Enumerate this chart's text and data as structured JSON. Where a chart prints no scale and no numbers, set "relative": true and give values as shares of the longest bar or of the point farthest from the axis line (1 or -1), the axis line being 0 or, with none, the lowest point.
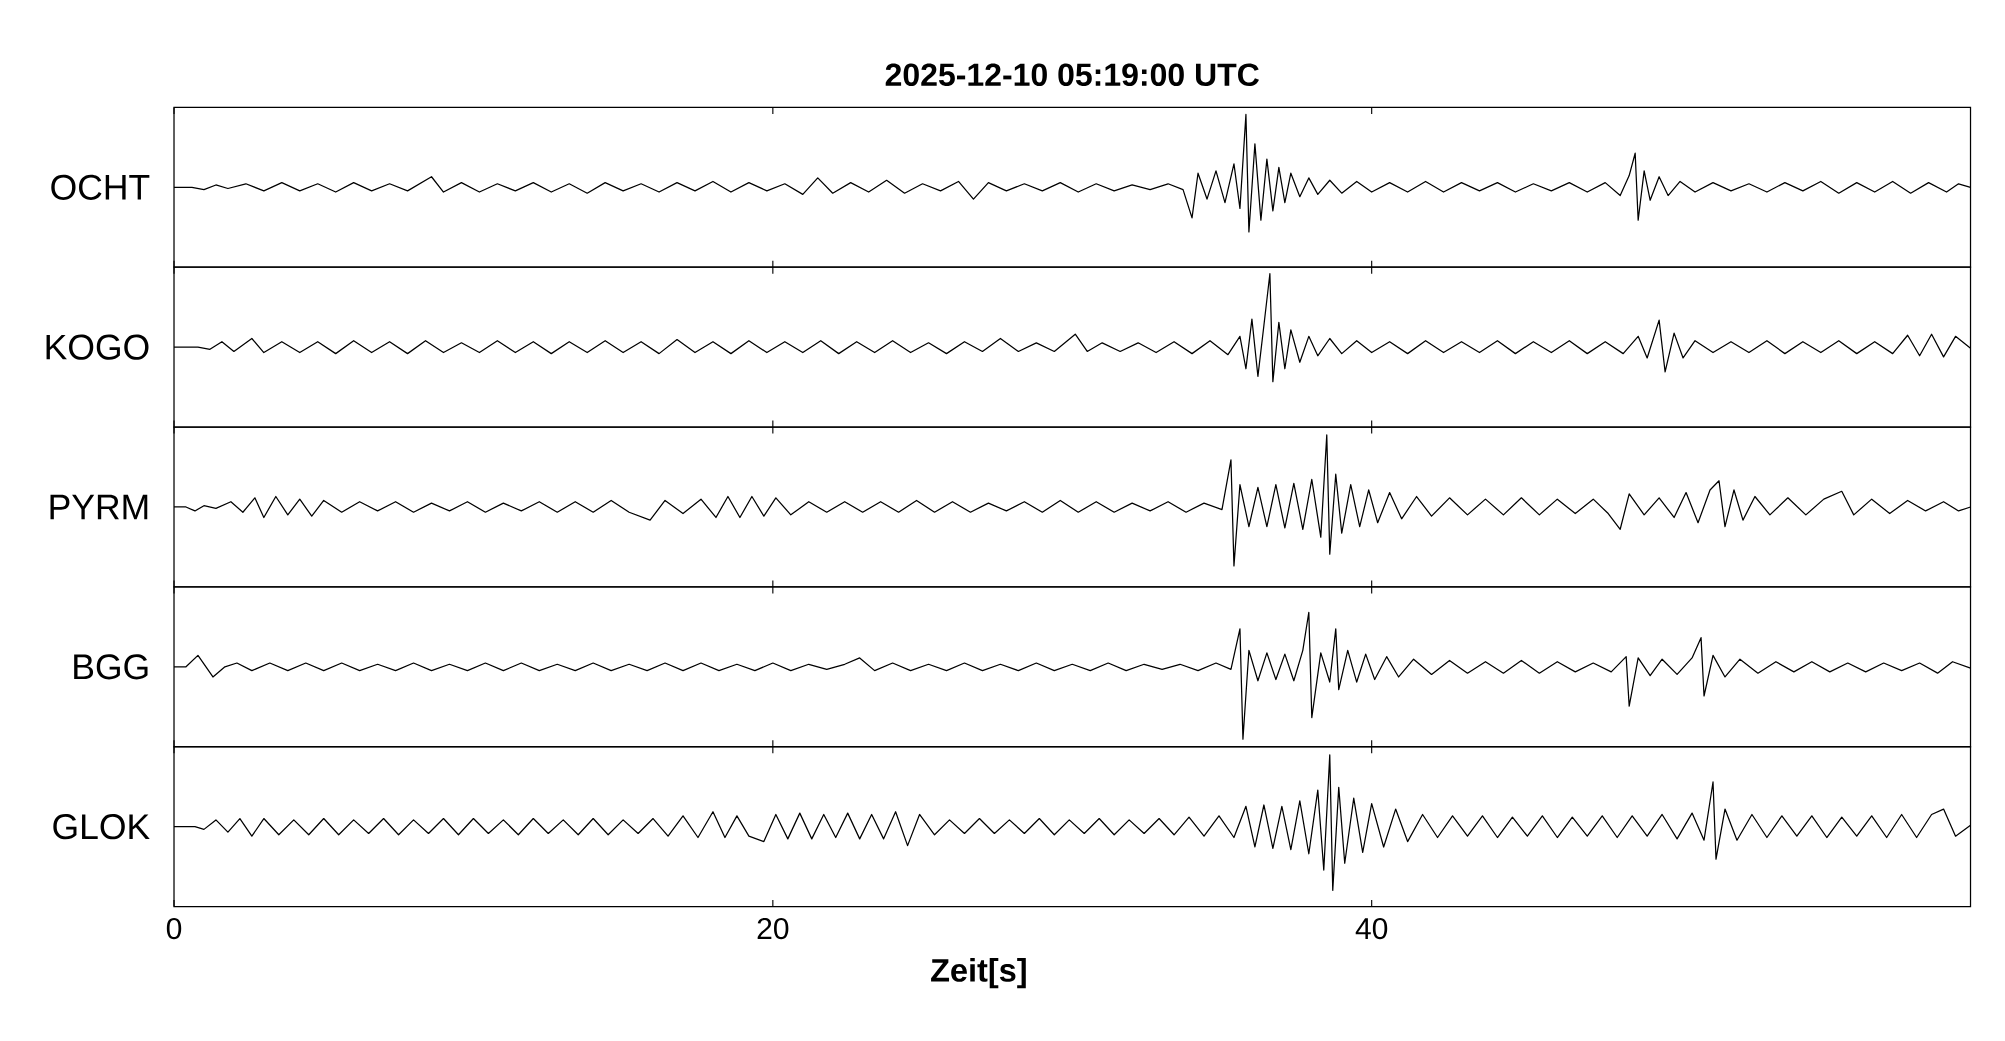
{
  "chart_data": [
    {
      "type": "line",
      "title": "2025-12-10  05:19:00 UTC",
      "ylabel": "OCHT",
      "color": "#000000",
      "relative": true,
      "xlim": [
        0,
        60
      ],
      "xticks": [
        0,
        20,
        40
      ],
      "tick_labels": false,
      "x": [
        0,
        0.6,
        1.0,
        1.4,
        1.8,
        2.4,
        3.0,
        3.6,
        4.2,
        4.8,
        5.4,
        6.0,
        6.6,
        7.2,
        7.8,
        8.6,
        9.0,
        9.6,
        10.2,
        10.8,
        11.4,
        12.0,
        12.6,
        13.2,
        13.8,
        14.4,
        15.0,
        15.6,
        16.2,
        16.8,
        17.4,
        18.0,
        18.6,
        19.2,
        19.8,
        20.4,
        21.0,
        21.5,
        22.0,
        22.6,
        23.2,
        23.8,
        24.4,
        25.0,
        25.6,
        26.2,
        26.7,
        27.2,
        27.8,
        28.4,
        29.0,
        29.6,
        30.2,
        30.8,
        31.4,
        32.0,
        32.6,
        33.2,
        33.7,
        34.0,
        34.2,
        34.5,
        34.8,
        35.1,
        35.4,
        35.6,
        35.8,
        35.9,
        36.1,
        36.3,
        36.5,
        36.7,
        36.9,
        37.1,
        37.3,
        37.6,
        37.9,
        38.2,
        38.6,
        39.0,
        39.5,
        40.0,
        40.6,
        41.2,
        41.8,
        42.4,
        43.0,
        43.6,
        44.2,
        44.8,
        45.4,
        46.0,
        46.6,
        47.2,
        47.8,
        48.3,
        48.6,
        48.8,
        48.9,
        49.1,
        49.3,
        49.6,
        49.9,
        50.3,
        50.8,
        51.4,
        52.0,
        52.6,
        53.2,
        53.8,
        54.4,
        55.0,
        55.6,
        56.2,
        56.8,
        57.4,
        58.0,
        58.6,
        59.2,
        59.6,
        60.0
      ],
      "values": [
        0.38,
        0.38,
        0.36,
        0.4,
        0.37,
        0.41,
        0.35,
        0.42,
        0.35,
        0.41,
        0.34,
        0.42,
        0.35,
        0.41,
        0.35,
        0.47,
        0.34,
        0.42,
        0.34,
        0.41,
        0.35,
        0.42,
        0.34,
        0.41,
        0.33,
        0.42,
        0.35,
        0.41,
        0.34,
        0.42,
        0.35,
        0.43,
        0.34,
        0.42,
        0.35,
        0.41,
        0.32,
        0.46,
        0.33,
        0.42,
        0.34,
        0.44,
        0.33,
        0.41,
        0.35,
        0.43,
        0.28,
        0.42,
        0.35,
        0.41,
        0.35,
        0.42,
        0.34,
        0.41,
        0.35,
        0.4,
        0.36,
        0.41,
        0.36,
        0.12,
        0.5,
        0.28,
        0.52,
        0.25,
        0.58,
        0.2,
        1.0,
        0.0,
        0.75,
        0.1,
        0.62,
        0.18,
        0.55,
        0.25,
        0.5,
        0.3,
        0.46,
        0.32,
        0.44,
        0.33,
        0.43,
        0.34,
        0.42,
        0.34,
        0.43,
        0.34,
        0.42,
        0.35,
        0.42,
        0.34,
        0.41,
        0.35,
        0.42,
        0.34,
        0.42,
        0.31,
        0.48,
        0.67,
        0.1,
        0.52,
        0.27,
        0.47,
        0.31,
        0.43,
        0.34,
        0.42,
        0.35,
        0.41,
        0.34,
        0.42,
        0.35,
        0.43,
        0.33,
        0.42,
        0.34,
        0.43,
        0.33,
        0.42,
        0.34,
        0.41,
        0.38
      ]
    },
    {
      "type": "line",
      "ylabel": "KOGO",
      "color": "#000000",
      "relative": true,
      "xlim": [
        0,
        60
      ],
      "xticks": [
        0,
        20,
        40
      ],
      "tick_labels": false,
      "x": [
        0,
        0.8,
        1.2,
        1.6,
        2.0,
        2.6,
        3.0,
        3.6,
        4.2,
        4.8,
        5.4,
        6.0,
        6.6,
        7.2,
        7.8,
        8.4,
        9.0,
        9.6,
        10.2,
        10.8,
        11.4,
        12.0,
        12.6,
        13.2,
        13.8,
        14.4,
        15.0,
        15.6,
        16.2,
        16.8,
        17.4,
        18.0,
        18.6,
        19.2,
        19.8,
        20.4,
        21.0,
        21.6,
        22.2,
        22.8,
        23.4,
        24.0,
        24.6,
        25.2,
        25.8,
        26.4,
        27.0,
        27.6,
        28.2,
        28.8,
        29.4,
        30.1,
        30.5,
        31.0,
        31.6,
        32.2,
        32.8,
        33.4,
        34.0,
        34.6,
        35.2,
        35.6,
        35.8,
        36.0,
        36.2,
        36.4,
        36.6,
        36.7,
        36.9,
        37.1,
        37.3,
        37.6,
        37.9,
        38.2,
        38.6,
        39.0,
        39.5,
        40.0,
        40.6,
        41.2,
        41.8,
        42.4,
        43.0,
        43.6,
        44.2,
        44.8,
        45.4,
        46.0,
        46.6,
        47.2,
        47.8,
        48.4,
        48.9,
        49.2,
        49.6,
        49.8,
        50.1,
        50.4,
        50.8,
        51.4,
        52.0,
        52.6,
        53.2,
        53.8,
        54.4,
        55.0,
        55.6,
        56.2,
        56.8,
        57.4,
        57.9,
        58.3,
        58.7,
        59.1,
        59.5,
        60.0
      ],
      "values": [
        0.32,
        0.32,
        0.3,
        0.37,
        0.28,
        0.4,
        0.27,
        0.37,
        0.27,
        0.37,
        0.26,
        0.38,
        0.27,
        0.37,
        0.26,
        0.38,
        0.27,
        0.36,
        0.27,
        0.38,
        0.27,
        0.37,
        0.26,
        0.37,
        0.27,
        0.38,
        0.27,
        0.37,
        0.26,
        0.39,
        0.27,
        0.37,
        0.26,
        0.38,
        0.27,
        0.37,
        0.27,
        0.38,
        0.26,
        0.37,
        0.27,
        0.38,
        0.27,
        0.36,
        0.26,
        0.37,
        0.28,
        0.4,
        0.28,
        0.36,
        0.28,
        0.44,
        0.28,
        0.36,
        0.28,
        0.36,
        0.27,
        0.37,
        0.26,
        0.38,
        0.25,
        0.42,
        0.12,
        0.58,
        0.05,
        0.52,
        1.0,
        0.0,
        0.55,
        0.12,
        0.48,
        0.18,
        0.42,
        0.24,
        0.4,
        0.26,
        0.38,
        0.27,
        0.37,
        0.26,
        0.38,
        0.27,
        0.37,
        0.27,
        0.38,
        0.26,
        0.37,
        0.27,
        0.38,
        0.26,
        0.37,
        0.26,
        0.42,
        0.22,
        0.57,
        0.09,
        0.45,
        0.22,
        0.38,
        0.27,
        0.37,
        0.27,
        0.38,
        0.26,
        0.37,
        0.27,
        0.38,
        0.26,
        0.37,
        0.26,
        0.43,
        0.24,
        0.44,
        0.23,
        0.42,
        0.31
      ]
    },
    {
      "type": "line",
      "ylabel": "PYRM",
      "color": "#000000",
      "relative": true,
      "xlim": [
        0,
        60
      ],
      "xticks": [
        0,
        20,
        40
      ],
      "tick_labels": false,
      "x": [
        0,
        0.4,
        0.7,
        1.0,
        1.4,
        1.9,
        2.3,
        2.7,
        3.0,
        3.4,
        3.8,
        4.2,
        4.6,
        5.0,
        5.6,
        6.2,
        6.8,
        7.4,
        8.0,
        8.6,
        9.2,
        9.8,
        10.4,
        11.0,
        11.6,
        12.2,
        12.8,
        13.4,
        14.0,
        14.6,
        15.2,
        15.9,
        16.4,
        17.0,
        17.6,
        18.1,
        18.5,
        18.9,
        19.3,
        19.7,
        20.1,
        20.6,
        21.2,
        21.8,
        22.4,
        23.0,
        23.6,
        24.2,
        24.8,
        25.4,
        26.0,
        26.6,
        27.2,
        27.8,
        28.4,
        29.0,
        29.6,
        30.2,
        30.8,
        31.4,
        32.0,
        32.6,
        33.2,
        33.8,
        34.4,
        35.0,
        35.3,
        35.4,
        35.6,
        35.9,
        36.2,
        36.5,
        36.8,
        37.1,
        37.4,
        37.7,
        38.0,
        38.3,
        38.5,
        38.6,
        38.8,
        39.0,
        39.3,
        39.6,
        39.9,
        40.2,
        40.6,
        41.0,
        41.5,
        42.0,
        42.6,
        43.2,
        43.8,
        44.4,
        45.0,
        45.6,
        46.2,
        46.8,
        47.4,
        47.9,
        48.3,
        48.6,
        49.1,
        49.6,
        50.1,
        50.5,
        50.9,
        51.3,
        51.6,
        51.8,
        52.1,
        52.4,
        52.8,
        53.3,
        53.9,
        54.5,
        55.1,
        55.7,
        56.1,
        56.7,
        57.3,
        57.9,
        58.5,
        59.1,
        59.6,
        60.0
      ],
      "values": [
        0.45,
        0.45,
        0.42,
        0.46,
        0.44,
        0.49,
        0.41,
        0.52,
        0.37,
        0.53,
        0.39,
        0.51,
        0.38,
        0.5,
        0.41,
        0.49,
        0.42,
        0.49,
        0.41,
        0.48,
        0.42,
        0.49,
        0.41,
        0.48,
        0.42,
        0.49,
        0.41,
        0.49,
        0.41,
        0.5,
        0.41,
        0.35,
        0.5,
        0.4,
        0.51,
        0.37,
        0.53,
        0.37,
        0.53,
        0.38,
        0.52,
        0.39,
        0.49,
        0.41,
        0.49,
        0.41,
        0.49,
        0.41,
        0.5,
        0.41,
        0.49,
        0.41,
        0.48,
        0.42,
        0.49,
        0.41,
        0.5,
        0.41,
        0.49,
        0.41,
        0.48,
        0.42,
        0.49,
        0.41,
        0.48,
        0.43,
        0.81,
        0.0,
        0.62,
        0.3,
        0.6,
        0.3,
        0.62,
        0.29,
        0.63,
        0.28,
        0.66,
        0.22,
        1.0,
        0.09,
        0.7,
        0.25,
        0.62,
        0.3,
        0.58,
        0.33,
        0.56,
        0.36,
        0.53,
        0.38,
        0.52,
        0.39,
        0.51,
        0.39,
        0.52,
        0.39,
        0.51,
        0.4,
        0.51,
        0.4,
        0.28,
        0.55,
        0.39,
        0.52,
        0.37,
        0.56,
        0.33,
        0.58,
        0.65,
        0.3,
        0.58,
        0.35,
        0.53,
        0.39,
        0.52,
        0.39,
        0.51,
        0.57,
        0.39,
        0.51,
        0.4,
        0.5,
        0.42,
        0.49,
        0.42,
        0.45
      ]
    },
    {
      "type": "line",
      "ylabel": "BGG",
      "color": "#000000",
      "relative": true,
      "xlim": [
        0,
        60
      ],
      "xticks": [
        0,
        20,
        40
      ],
      "tick_labels": false,
      "x": [
        0,
        0.4,
        0.8,
        1.3,
        1.7,
        2.1,
        2.6,
        3.2,
        3.8,
        4.4,
        5.0,
        5.6,
        6.2,
        6.8,
        7.4,
        8.0,
        8.6,
        9.2,
        9.8,
        10.4,
        11.0,
        11.6,
        12.2,
        12.8,
        13.4,
        14.0,
        14.6,
        15.2,
        15.8,
        16.4,
        17.0,
        17.6,
        18.2,
        18.8,
        19.4,
        20.0,
        20.6,
        21.2,
        21.8,
        22.4,
        22.9,
        23.4,
        24.0,
        24.6,
        25.2,
        25.8,
        26.4,
        27.0,
        27.6,
        28.2,
        28.8,
        29.4,
        30.0,
        30.6,
        31.2,
        31.8,
        32.4,
        33.0,
        33.6,
        34.2,
        34.8,
        35.3,
        35.6,
        35.7,
        35.9,
        36.2,
        36.5,
        36.8,
        37.1,
        37.4,
        37.7,
        37.9,
        38.0,
        38.3,
        38.6,
        38.8,
        38.9,
        39.2,
        39.5,
        39.8,
        40.1,
        40.5,
        40.9,
        41.4,
        42.0,
        42.6,
        43.2,
        43.8,
        44.4,
        45.0,
        45.6,
        46.2,
        46.8,
        47.4,
        48.0,
        48.5,
        48.6,
        48.9,
        49.3,
        49.7,
        50.2,
        50.7,
        51.0,
        51.1,
        51.4,
        51.8,
        52.3,
        52.9,
        53.5,
        54.1,
        54.7,
        55.3,
        55.9,
        56.5,
        57.1,
        57.7,
        58.3,
        58.9,
        59.4,
        60.0
      ],
      "values": [
        0.57,
        0.57,
        0.66,
        0.49,
        0.57,
        0.6,
        0.54,
        0.6,
        0.54,
        0.6,
        0.54,
        0.6,
        0.54,
        0.59,
        0.54,
        0.6,
        0.54,
        0.59,
        0.54,
        0.6,
        0.54,
        0.6,
        0.54,
        0.59,
        0.54,
        0.6,
        0.54,
        0.59,
        0.54,
        0.6,
        0.54,
        0.6,
        0.54,
        0.59,
        0.54,
        0.6,
        0.54,
        0.59,
        0.55,
        0.59,
        0.64,
        0.54,
        0.6,
        0.54,
        0.59,
        0.54,
        0.6,
        0.54,
        0.59,
        0.54,
        0.6,
        0.54,
        0.59,
        0.54,
        0.6,
        0.54,
        0.59,
        0.55,
        0.59,
        0.54,
        0.6,
        0.55,
        0.87,
        0.0,
        0.7,
        0.46,
        0.68,
        0.47,
        0.67,
        0.46,
        0.7,
        1.0,
        0.17,
        0.68,
        0.45,
        0.87,
        0.39,
        0.7,
        0.45,
        0.67,
        0.47,
        0.65,
        0.49,
        0.63,
        0.51,
        0.62,
        0.52,
        0.61,
        0.52,
        0.62,
        0.52,
        0.61,
        0.53,
        0.6,
        0.53,
        0.65,
        0.26,
        0.64,
        0.5,
        0.63,
        0.51,
        0.64,
        0.8,
        0.34,
        0.66,
        0.49,
        0.63,
        0.52,
        0.61,
        0.53,
        0.61,
        0.53,
        0.6,
        0.53,
        0.6,
        0.54,
        0.6,
        0.52,
        0.61,
        0.56
      ]
    },
    {
      "type": "line",
      "ylabel": "GLOK",
      "xlabel": "Zeit[s]",
      "color": "#000000",
      "relative": true,
      "xlim": [
        0,
        60
      ],
      "xticks": [
        0,
        20,
        40
      ],
      "tick_labels": "x",
      "x": [
        0,
        0.7,
        1.0,
        1.4,
        1.8,
        2.2,
        2.6,
        3.0,
        3.5,
        4.0,
        4.5,
        5.0,
        5.5,
        6.0,
        6.5,
        7.0,
        7.5,
        8.0,
        8.5,
        9.0,
        9.5,
        10.0,
        10.5,
        11.0,
        11.5,
        12.0,
        12.5,
        13.0,
        13.5,
        14.0,
        14.5,
        15.0,
        15.5,
        16.0,
        16.5,
        17.0,
        17.5,
        18.0,
        18.4,
        18.8,
        19.2,
        19.7,
        20.1,
        20.5,
        20.9,
        21.3,
        21.7,
        22.1,
        22.5,
        22.9,
        23.3,
        23.7,
        24.1,
        24.5,
        24.9,
        25.4,
        25.9,
        26.4,
        26.9,
        27.4,
        27.9,
        28.4,
        28.9,
        29.4,
        29.9,
        30.4,
        30.9,
        31.4,
        31.9,
        32.4,
        32.9,
        33.4,
        33.9,
        34.4,
        34.9,
        35.4,
        35.8,
        36.1,
        36.4,
        36.7,
        37.0,
        37.3,
        37.6,
        37.9,
        38.2,
        38.4,
        38.6,
        38.7,
        38.9,
        39.1,
        39.4,
        39.7,
        40.0,
        40.4,
        40.8,
        41.2,
        41.7,
        42.2,
        42.7,
        43.2,
        43.7,
        44.2,
        44.7,
        45.2,
        45.7,
        46.2,
        46.7,
        47.2,
        47.7,
        48.2,
        48.7,
        49.2,
        49.7,
        50.2,
        50.7,
        51.1,
        51.4,
        51.5,
        51.8,
        52.2,
        52.7,
        53.2,
        53.7,
        54.2,
        54.7,
        55.2,
        55.7,
        56.2,
        56.7,
        57.2,
        57.7,
        58.2,
        58.7,
        59.1,
        59.5,
        60.0
      ],
      "values": [
        0.47,
        0.47,
        0.45,
        0.52,
        0.43,
        0.53,
        0.4,
        0.53,
        0.41,
        0.52,
        0.41,
        0.53,
        0.41,
        0.52,
        0.42,
        0.53,
        0.41,
        0.52,
        0.42,
        0.53,
        0.41,
        0.53,
        0.42,
        0.52,
        0.41,
        0.53,
        0.42,
        0.52,
        0.41,
        0.53,
        0.41,
        0.52,
        0.42,
        0.53,
        0.4,
        0.55,
        0.39,
        0.58,
        0.39,
        0.55,
        0.4,
        0.36,
        0.56,
        0.38,
        0.57,
        0.38,
        0.56,
        0.39,
        0.57,
        0.38,
        0.56,
        0.38,
        0.58,
        0.33,
        0.56,
        0.41,
        0.52,
        0.42,
        0.53,
        0.42,
        0.52,
        0.42,
        0.53,
        0.41,
        0.52,
        0.42,
        0.53,
        0.41,
        0.52,
        0.42,
        0.53,
        0.41,
        0.54,
        0.4,
        0.55,
        0.39,
        0.62,
        0.32,
        0.63,
        0.31,
        0.62,
        0.3,
        0.66,
        0.27,
        0.74,
        0.15,
        1.0,
        0.0,
        0.76,
        0.2,
        0.68,
        0.28,
        0.64,
        0.32,
        0.6,
        0.36,
        0.56,
        0.39,
        0.55,
        0.4,
        0.55,
        0.39,
        0.54,
        0.4,
        0.55,
        0.39,
        0.54,
        0.4,
        0.55,
        0.39,
        0.55,
        0.4,
        0.56,
        0.38,
        0.57,
        0.37,
        0.8,
        0.23,
        0.6,
        0.37,
        0.56,
        0.39,
        0.55,
        0.4,
        0.55,
        0.39,
        0.54,
        0.4,
        0.55,
        0.39,
        0.56,
        0.39,
        0.56,
        0.6,
        0.4,
        0.48
      ]
    }
  ]
}
